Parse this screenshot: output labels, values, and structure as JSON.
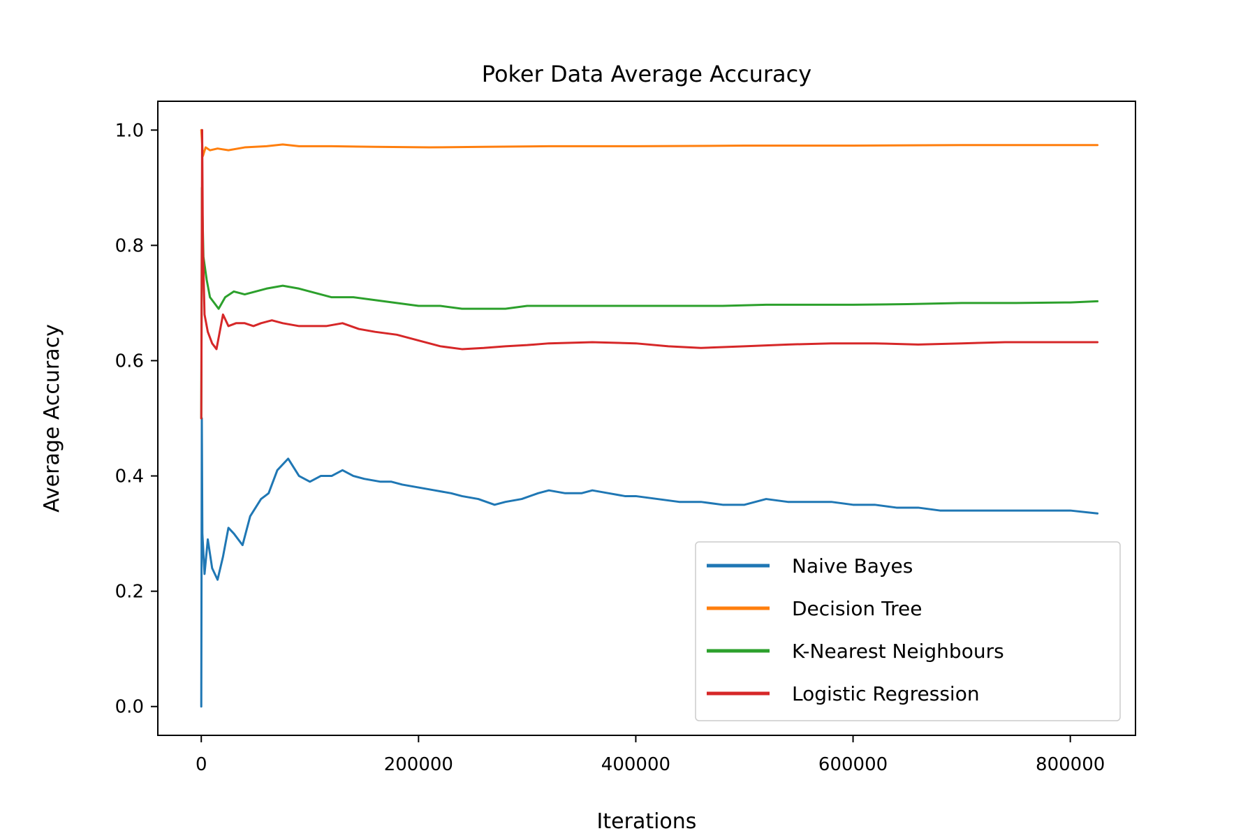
{
  "chart_data": {
    "type": "line",
    "title": "Poker Data Average Accuracy",
    "xlabel": "Iterations",
    "ylabel": "Average Accuracy",
    "xlim": [
      -40000,
      860000
    ],
    "ylim": [
      -0.05,
      1.05
    ],
    "xticks": [
      0,
      200000,
      400000,
      600000,
      800000
    ],
    "xtick_labels": [
      "0",
      "200000",
      "400000",
      "600000",
      "800000"
    ],
    "yticks": [
      0.0,
      0.2,
      0.4,
      0.6,
      0.8,
      1.0
    ],
    "ytick_labels": [
      "0.0",
      "0.2",
      "0.4",
      "0.6",
      "0.8",
      "1.0"
    ],
    "grid": false,
    "legend_position": "bottom-right",
    "series": [
      {
        "name": "Naive Bayes",
        "color": "#1f77b4",
        "points": [
          [
            0,
            0.0
          ],
          [
            500,
            0.5
          ],
          [
            1000,
            0.3
          ],
          [
            3000,
            0.23
          ],
          [
            6000,
            0.29
          ],
          [
            10000,
            0.24
          ],
          [
            15000,
            0.22
          ],
          [
            20000,
            0.26
          ],
          [
            25000,
            0.31
          ],
          [
            30000,
            0.3
          ],
          [
            38000,
            0.28
          ],
          [
            45000,
            0.33
          ],
          [
            55000,
            0.36
          ],
          [
            62000,
            0.37
          ],
          [
            70000,
            0.41
          ],
          [
            80000,
            0.43
          ],
          [
            90000,
            0.4
          ],
          [
            100000,
            0.39
          ],
          [
            110000,
            0.4
          ],
          [
            120000,
            0.4
          ],
          [
            130000,
            0.41
          ],
          [
            140000,
            0.4
          ],
          [
            150000,
            0.395
          ],
          [
            165000,
            0.39
          ],
          [
            175000,
            0.39
          ],
          [
            185000,
            0.385
          ],
          [
            200000,
            0.38
          ],
          [
            215000,
            0.375
          ],
          [
            230000,
            0.37
          ],
          [
            240000,
            0.365
          ],
          [
            255000,
            0.36
          ],
          [
            270000,
            0.35
          ],
          [
            280000,
            0.355
          ],
          [
            295000,
            0.36
          ],
          [
            310000,
            0.37
          ],
          [
            320000,
            0.375
          ],
          [
            335000,
            0.37
          ],
          [
            350000,
            0.37
          ],
          [
            360000,
            0.375
          ],
          [
            375000,
            0.37
          ],
          [
            390000,
            0.365
          ],
          [
            400000,
            0.365
          ],
          [
            420000,
            0.36
          ],
          [
            440000,
            0.355
          ],
          [
            460000,
            0.355
          ],
          [
            480000,
            0.35
          ],
          [
            500000,
            0.35
          ],
          [
            520000,
            0.36
          ],
          [
            540000,
            0.355
          ],
          [
            560000,
            0.355
          ],
          [
            580000,
            0.355
          ],
          [
            600000,
            0.35
          ],
          [
            620000,
            0.35
          ],
          [
            640000,
            0.345
          ],
          [
            660000,
            0.345
          ],
          [
            680000,
            0.34
          ],
          [
            700000,
            0.34
          ],
          [
            720000,
            0.34
          ],
          [
            740000,
            0.34
          ],
          [
            760000,
            0.34
          ],
          [
            780000,
            0.34
          ],
          [
            800000,
            0.34
          ],
          [
            825000,
            0.335
          ]
        ]
      },
      {
        "name": "Decision Tree",
        "color": "#ff7f0e",
        "points": [
          [
            0,
            1.0
          ],
          [
            1500,
            0.955
          ],
          [
            4000,
            0.97
          ],
          [
            8000,
            0.965
          ],
          [
            15000,
            0.968
          ],
          [
            25000,
            0.965
          ],
          [
            40000,
            0.97
          ],
          [
            60000,
            0.972
          ],
          [
            75000,
            0.975
          ],
          [
            90000,
            0.972
          ],
          [
            120000,
            0.972
          ],
          [
            160000,
            0.971
          ],
          [
            210000,
            0.97
          ],
          [
            260000,
            0.971
          ],
          [
            320000,
            0.972
          ],
          [
            400000,
            0.972
          ],
          [
            500000,
            0.973
          ],
          [
            600000,
            0.973
          ],
          [
            700000,
            0.974
          ],
          [
            825000,
            0.974
          ]
        ]
      },
      {
        "name": "K-Nearest Neighbours",
        "color": "#2ca02c",
        "points": [
          [
            0,
            0.5
          ],
          [
            600,
            0.9
          ],
          [
            2000,
            0.78
          ],
          [
            5000,
            0.74
          ],
          [
            8000,
            0.71
          ],
          [
            12000,
            0.7
          ],
          [
            16000,
            0.69
          ],
          [
            22000,
            0.71
          ],
          [
            30000,
            0.72
          ],
          [
            40000,
            0.715
          ],
          [
            50000,
            0.72
          ],
          [
            60000,
            0.725
          ],
          [
            75000,
            0.73
          ],
          [
            90000,
            0.725
          ],
          [
            100000,
            0.72
          ],
          [
            120000,
            0.71
          ],
          [
            140000,
            0.71
          ],
          [
            160000,
            0.705
          ],
          [
            180000,
            0.7
          ],
          [
            200000,
            0.695
          ],
          [
            220000,
            0.695
          ],
          [
            240000,
            0.69
          ],
          [
            260000,
            0.69
          ],
          [
            280000,
            0.69
          ],
          [
            300000,
            0.695
          ],
          [
            320000,
            0.695
          ],
          [
            360000,
            0.695
          ],
          [
            400000,
            0.695
          ],
          [
            440000,
            0.695
          ],
          [
            480000,
            0.695
          ],
          [
            520000,
            0.697
          ],
          [
            560000,
            0.697
          ],
          [
            600000,
            0.697
          ],
          [
            650000,
            0.698
          ],
          [
            700000,
            0.7
          ],
          [
            750000,
            0.7
          ],
          [
            800000,
            0.701
          ],
          [
            825000,
            0.703
          ]
        ]
      },
      {
        "name": "Logistic Regression",
        "color": "#d62728",
        "points": [
          [
            0,
            0.5
          ],
          [
            800,
            1.0
          ],
          [
            1500,
            0.8
          ],
          [
            3000,
            0.68
          ],
          [
            6000,
            0.65
          ],
          [
            10000,
            0.63
          ],
          [
            14000,
            0.62
          ],
          [
            20000,
            0.68
          ],
          [
            25000,
            0.66
          ],
          [
            32000,
            0.665
          ],
          [
            40000,
            0.665
          ],
          [
            48000,
            0.66
          ],
          [
            55000,
            0.665
          ],
          [
            65000,
            0.67
          ],
          [
            75000,
            0.665
          ],
          [
            90000,
            0.66
          ],
          [
            100000,
            0.66
          ],
          [
            115000,
            0.66
          ],
          [
            130000,
            0.665
          ],
          [
            145000,
            0.655
          ],
          [
            160000,
            0.65
          ],
          [
            180000,
            0.645
          ],
          [
            200000,
            0.635
          ],
          [
            220000,
            0.625
          ],
          [
            240000,
            0.62
          ],
          [
            260000,
            0.622
          ],
          [
            280000,
            0.625
          ],
          [
            300000,
            0.627
          ],
          [
            320000,
            0.63
          ],
          [
            360000,
            0.632
          ],
          [
            400000,
            0.63
          ],
          [
            430000,
            0.625
          ],
          [
            460000,
            0.622
          ],
          [
            500000,
            0.625
          ],
          [
            540000,
            0.628
          ],
          [
            580000,
            0.63
          ],
          [
            620000,
            0.63
          ],
          [
            660000,
            0.628
          ],
          [
            700000,
            0.63
          ],
          [
            740000,
            0.632
          ],
          [
            780000,
            0.632
          ],
          [
            825000,
            0.632
          ]
        ]
      }
    ]
  }
}
